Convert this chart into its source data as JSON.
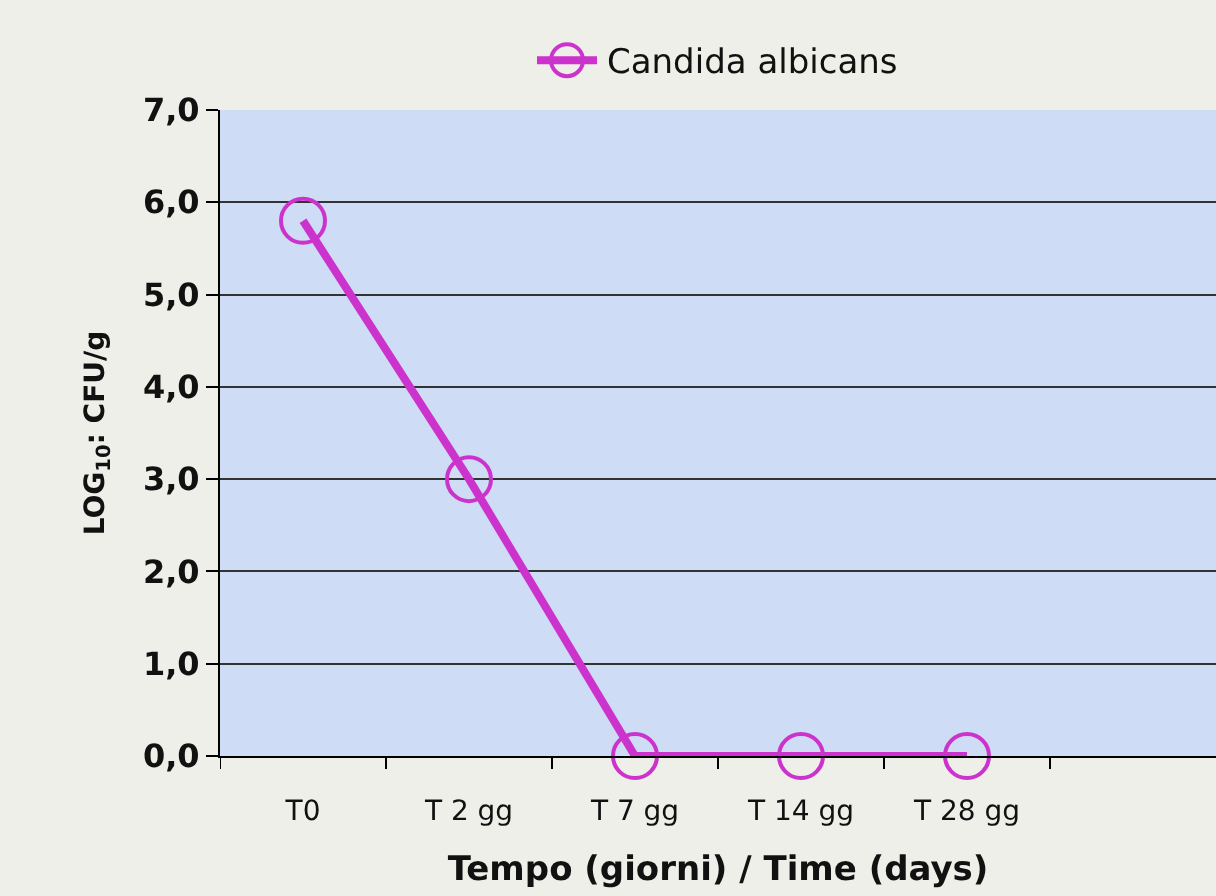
{
  "chart_data": {
    "type": "line",
    "xlabel": "Tempo (giorni) / Time (days)",
    "ylabel": "LOG$_{10}$: CFU/g",
    "categories": [
      "T0",
      "T 2 gg",
      "T 7 gg",
      "T 14 gg",
      "T 28 gg",
      null
    ],
    "series": [
      {
        "name": "Candida albicans",
        "color": "#cc33cc",
        "values": [
          5.8,
          3.0,
          0.0,
          0.0,
          0.0,
          null
        ]
      }
    ],
    "ylim": [
      0,
      7
    ],
    "yticks": [
      {
        "value": 0,
        "label": "0,0"
      },
      {
        "value": 1,
        "label": "1,0"
      },
      {
        "value": 2,
        "label": "2,0"
      },
      {
        "value": 3,
        "label": "3,0"
      },
      {
        "value": 4,
        "label": "4,0"
      },
      {
        "value": 5,
        "label": "5,0"
      },
      {
        "value": 6,
        "label": "6,0"
      },
      {
        "value": 7,
        "label": "7,0"
      }
    ],
    "grid": "y",
    "legend": "top",
    "marker": "circle",
    "line_style": "solid"
  }
}
